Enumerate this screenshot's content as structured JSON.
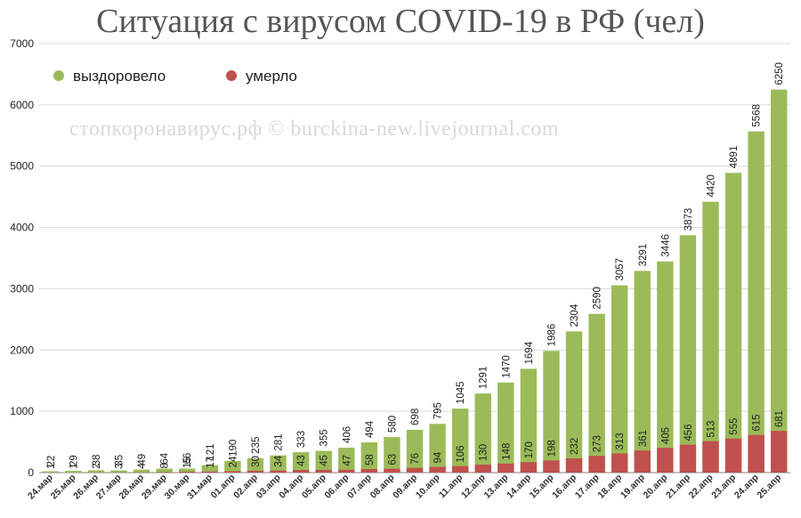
{
  "chart_data": {
    "type": "bar",
    "stacked_overlay": true,
    "title": "Ситуация с вирусом COVID-19 в РФ (чел)",
    "watermark": "стопкоронавирус.рф © burckina-new.livejournal.com",
    "ylim": [
      0,
      7000
    ],
    "yticks": [
      0,
      1000,
      2000,
      3000,
      4000,
      5000,
      6000,
      7000
    ],
    "grid": true,
    "legend_position": "top-left",
    "categories": [
      "24.мар",
      "25.мар",
      "26.мар",
      "27.мар",
      "28.мар",
      "29.мар",
      "30.мар",
      "31.мар",
      "01.апр",
      "02.апр",
      "03.апр",
      "04.апр",
      "05.апр",
      "06.апр",
      "07.апр",
      "08.апр",
      "09.апр",
      "10.апр",
      "11.апр",
      "12.апр",
      "13.апр",
      "14.апр",
      "15.апр",
      "16.апр",
      "17.апр",
      "18.апр",
      "19.апр",
      "20.апр",
      "21.апр",
      "22.апр",
      "23.апр",
      "24.апр",
      "25.апр"
    ],
    "series": [
      {
        "name": "выздоровело",
        "color": "#9bbb59",
        "values": [
          22,
          29,
          38,
          35,
          49,
          64,
          66,
          121,
          190,
          235,
          281,
          333,
          355,
          406,
          494,
          580,
          698,
          795,
          1045,
          1291,
          1470,
          1694,
          1986,
          2304,
          2590,
          3057,
          3291,
          3446,
          3873,
          4420,
          4891,
          5568,
          6250
        ]
      },
      {
        "name": "умерло",
        "color": "#c0504d",
        "values": [
          1,
          1,
          2,
          3,
          4,
          8,
          15,
          17,
          24,
          30,
          34,
          43,
          45,
          47,
          58,
          63,
          76,
          94,
          106,
          130,
          148,
          170,
          198,
          232,
          273,
          313,
          361,
          405,
          456,
          513,
          555,
          615,
          681
        ]
      }
    ]
  }
}
